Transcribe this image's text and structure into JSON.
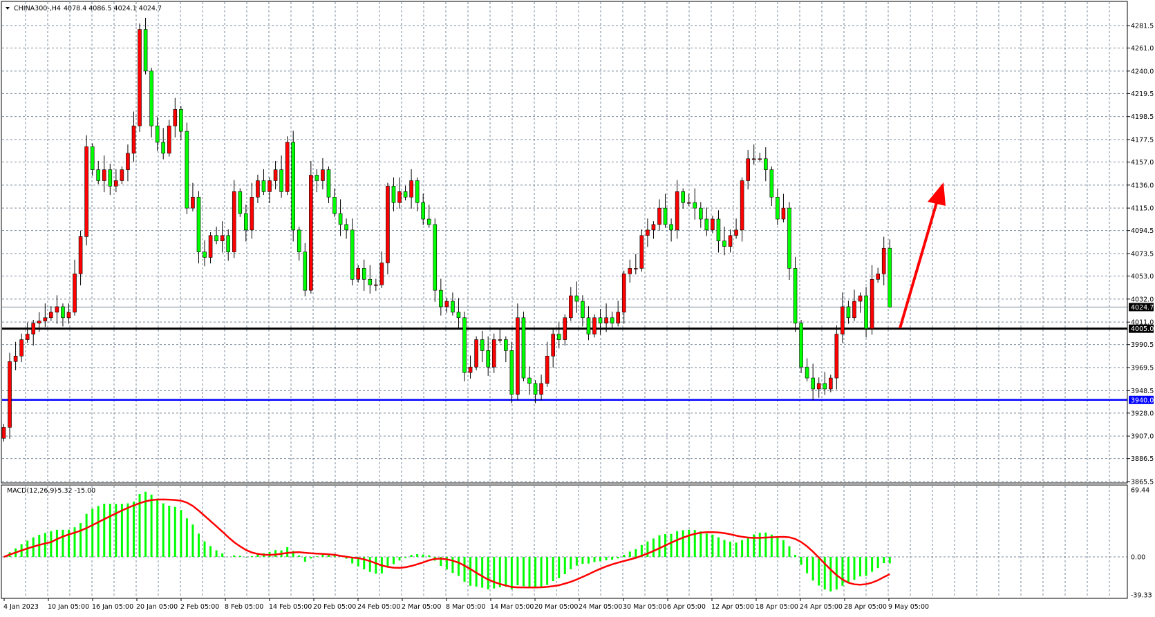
{
  "header": {
    "symbol": "CHINA300-,H4",
    "ohlc": "4078.4 4086.5 4024.1 4024.7"
  },
  "macd_label": {
    "name": "MACD(12,26,9)",
    "values": "-5.32 -15.00"
  },
  "colors": {
    "bull": "#ff0000",
    "bear": "#00ff00",
    "support": "#000000",
    "support2": "#0000ff",
    "histogram": "#00ff00",
    "signal": "#ff0000",
    "grid": "#778899",
    "arrow": "#ff0000"
  },
  "chart_data": {
    "type": "candlestick",
    "symbol": "CHINA300-",
    "timeframe": "H4",
    "ylim": [
      3865.5,
      4281.5
    ],
    "price_ticks": [
      "4281.5",
      "4261.0",
      "4240.0",
      "4219.5",
      "4198.5",
      "4177.5",
      "4157.0",
      "4136.0",
      "4115.0",
      "4094.5",
      "4073.5",
      "4053.0",
      "4032.0",
      "4011.0",
      "3990.5",
      "3969.5",
      "3948.5",
      "3928.0",
      "3907.0",
      "3886.5",
      "3865.5"
    ],
    "date_ticks": [
      "4 Jan 2023",
      "10 Jan 05:00",
      "16 Jan 05:00",
      "20 Jan 05:00",
      "2 Feb 05:00",
      "8 Feb 05:00",
      "14 Feb 05:00",
      "20 Feb 05:00",
      "24 Feb 05:00",
      "2 Mar 05:00",
      "8 Mar 05:00",
      "14 Mar 05:00",
      "20 Mar 05:00",
      "24 Mar 05:00",
      "30 Mar 05:00",
      "6 Apr 05:00",
      "12 Apr 05:00",
      "18 Apr 05:00",
      "24 Apr 05:00",
      "28 Apr 05:00",
      "9 May 05:00"
    ],
    "first_open": 3905,
    "closes": [
      3915,
      3975,
      3980,
      3995,
      4000,
      4010,
      4012,
      4015,
      4020,
      4025,
      4015,
      4020,
      4055,
      4089,
      4171,
      4150,
      4140,
      4150,
      4135,
      4140,
      4150,
      4165,
      4190,
      4278,
      4240,
      4190,
      4175,
      4165,
      4190,
      4205,
      4185,
      4115,
      4125,
      4075,
      4070,
      4090,
      4085,
      4090,
      4075,
      4130,
      4110,
      4095,
      4125,
      4140,
      4130,
      4140,
      4150,
      4130,
      4175,
      4095,
      4075,
      4040,
      4145,
      4140,
      4150,
      4125,
      4110,
      4100,
      4095,
      4050,
      4060,
      4050,
      4045,
      4045,
      4065,
      4135,
      4120,
      4130,
      4125,
      4140,
      4120,
      4105,
      4100,
      4040,
      4025,
      4030,
      4020,
      4015,
      3965,
      3970,
      3995,
      3985,
      3970,
      3995,
      3995,
      3985,
      3945,
      4015,
      3960,
      3955,
      3945,
      3955,
      3980,
      4000,
      3995,
      4015,
      4035,
      4030,
      4015,
      4000,
      4015,
      4010,
      4015,
      4010,
      4020,
      4055,
      4060,
      4060,
      4090,
      4095,
      4100,
      4115,
      4100,
      4095,
      4130,
      4120,
      4120,
      4115,
      4105,
      4095,
      4105,
      4085,
      4080,
      4090,
      4095,
      4140,
      4160,
      4160,
      4160,
      4150,
      4125,
      4105,
      4115,
      4060,
      4010,
      3970,
      3960,
      3950,
      3955,
      3950,
      3960,
      4000,
      4025,
      4015,
      4030,
      4035,
      4005,
      4050,
      4055,
      4078.4,
      4024.7
    ],
    "last_candle": {
      "open": 4078.4,
      "high": 4086.5,
      "low": 4024.1,
      "close": 4024.7
    },
    "horizontal_lines": [
      {
        "price": 4005.0,
        "label": "4005.0",
        "color": "#000000"
      },
      {
        "price": 3940.0,
        "label": "3940.0",
        "color": "#0000ff"
      }
    ],
    "bid_line": {
      "price": 4024.7,
      "label": "4024.7"
    },
    "annotation": "up-arrow",
    "macd": {
      "fast": 12,
      "slow": 26,
      "signal": 9,
      "ylim": [
        -39.33,
        69.44
      ],
      "ticks": [
        "69.44",
        "0.00",
        "-39.33"
      ]
    }
  }
}
